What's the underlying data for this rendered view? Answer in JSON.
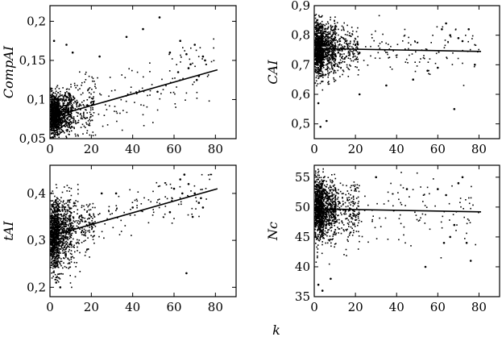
{
  "figure": {
    "shared_xlabel": "k"
  },
  "chart_data": [
    {
      "type": "scatter",
      "panel": "top-left",
      "xlabel": "",
      "ylabel": "CompAI",
      "xlim": [
        0,
        90
      ],
      "ylim": [
        0.05,
        0.22
      ],
      "xticks": [
        0,
        20,
        40,
        60,
        80
      ],
      "xtick_labels": [
        "0",
        "20",
        "40",
        "60",
        "80"
      ],
      "yticks": [
        0.05,
        0.1,
        0.15,
        0.2
      ],
      "ytick_labels": [
        "0,05",
        "0,1",
        "0,15",
        "0,2"
      ],
      "trend": {
        "x": [
          1,
          81
        ],
        "y": [
          0.078,
          0.138
        ]
      },
      "cloud": {
        "mean_y": 0.086,
        "spread_y": 0.014,
        "slope": 0.00075,
        "intercept": 0.078,
        "tail_spread": 0.022,
        "clip": [
          0.05,
          0.21
        ]
      },
      "series": [
        {
          "x": [
            53,
            63,
            66,
            70,
            75,
            67,
            72,
            58,
            62,
            68,
            71,
            74,
            52,
            45,
            37,
            24,
            11,
            8,
            2
          ],
          "y": [
            0.205,
            0.175,
            0.158,
            0.17,
            0.15,
            0.14,
            0.13,
            0.16,
            0.135,
            0.145,
            0.125,
            0.155,
            0.11,
            0.19,
            0.18,
            0.155,
            0.16,
            0.17,
            0.175
          ]
        }
      ],
      "grid": false
    },
    {
      "type": "scatter",
      "panel": "top-right",
      "xlabel": "",
      "ylabel": "CAI",
      "xlim": [
        0,
        90
      ],
      "ylim": [
        0.45,
        0.9
      ],
      "xticks": [
        0,
        20,
        40,
        60,
        80
      ],
      "xtick_labels": [
        "0",
        "20",
        "40",
        "60",
        "80"
      ],
      "yticks": [
        0.5,
        0.6,
        0.7,
        0.8,
        0.9
      ],
      "ytick_labels": [
        "0,5",
        "0,6",
        "0,7",
        "0,8",
        "0,9"
      ],
      "trend": {
        "x": [
          1,
          81
        ],
        "y": [
          0.755,
          0.745
        ]
      },
      "cloud": {
        "mean_y": 0.745,
        "spread_y": 0.045,
        "slope": -0.000125,
        "intercept": 0.755,
        "tail_spread": 0.04,
        "clip": [
          0.48,
          0.87
        ]
      },
      "series": [
        {
          "x": [
            62,
            64,
            66,
            70,
            72,
            75,
            60,
            68,
            55,
            48,
            35,
            22,
            6,
            3,
            2,
            78
          ],
          "y": [
            0.82,
            0.84,
            0.8,
            0.79,
            0.78,
            0.82,
            0.69,
            0.55,
            0.68,
            0.65,
            0.63,
            0.6,
            0.51,
            0.49,
            0.57,
            0.7
          ]
        }
      ],
      "grid": false
    },
    {
      "type": "scatter",
      "panel": "bottom-left",
      "xlabel": "",
      "ylabel": "tAI",
      "xlim": [
        0,
        90
      ],
      "ylim": [
        0.18,
        0.46
      ],
      "xticks": [
        0,
        20,
        40,
        60,
        80
      ],
      "xtick_labels": [
        "0",
        "20",
        "40",
        "60",
        "80"
      ],
      "yticks": [
        0.2,
        0.3,
        0.4
      ],
      "ytick_labels": [
        "0,2",
        "0,3",
        "0,4"
      ],
      "trend": {
        "x": [
          1,
          81
        ],
        "y": [
          0.31,
          0.41
        ]
      },
      "cloud": {
        "mean_y": 0.315,
        "spread_y": 0.035,
        "slope": 0.00125,
        "intercept": 0.31,
        "tail_spread": 0.03,
        "clip": [
          0.19,
          0.45
        ]
      },
      "series": [
        {
          "x": [
            63,
            65,
            67,
            70,
            72,
            74,
            60,
            58,
            66,
            69,
            73,
            64,
            40,
            32,
            25,
            5,
            3
          ],
          "y": [
            0.43,
            0.44,
            0.42,
            0.4,
            0.38,
            0.37,
            0.41,
            0.36,
            0.23,
            0.35,
            0.39,
            0.4,
            0.37,
            0.4,
            0.4,
            0.2,
            0.21
          ]
        }
      ],
      "grid": false
    },
    {
      "type": "scatter",
      "panel": "bottom-right",
      "xlabel": "",
      "ylabel": "Nc",
      "xlim": [
        0,
        90
      ],
      "ylim": [
        35,
        57
      ],
      "xticks": [
        0,
        20,
        40,
        60,
        80
      ],
      "xtick_labels": [
        "0",
        "20",
        "40",
        "60",
        "80"
      ],
      "yticks": [
        35,
        40,
        45,
        50,
        55
      ],
      "ytick_labels": [
        "35",
        "40",
        "45",
        "50",
        "55"
      ],
      "trend": {
        "x": [
          1,
          81
        ],
        "y": [
          49.7,
          49.2
        ]
      },
      "cloud": {
        "mean_y": 49.5,
        "spread_y": 2.6,
        "slope": -0.006,
        "intercept": 49.7,
        "tail_spread": 2.8,
        "clip": [
          35.5,
          56.5
        ]
      },
      "series": [
        {
          "x": [
            54,
            63,
            66,
            70,
            72,
            76,
            60,
            64,
            68,
            74,
            45,
            30,
            20,
            8,
            4,
            2
          ],
          "y": [
            40,
            44,
            45,
            54,
            55,
            41,
            53,
            52,
            47,
            44,
            53,
            55,
            53,
            38,
            36,
            37
          ]
        }
      ],
      "grid": false
    }
  ]
}
